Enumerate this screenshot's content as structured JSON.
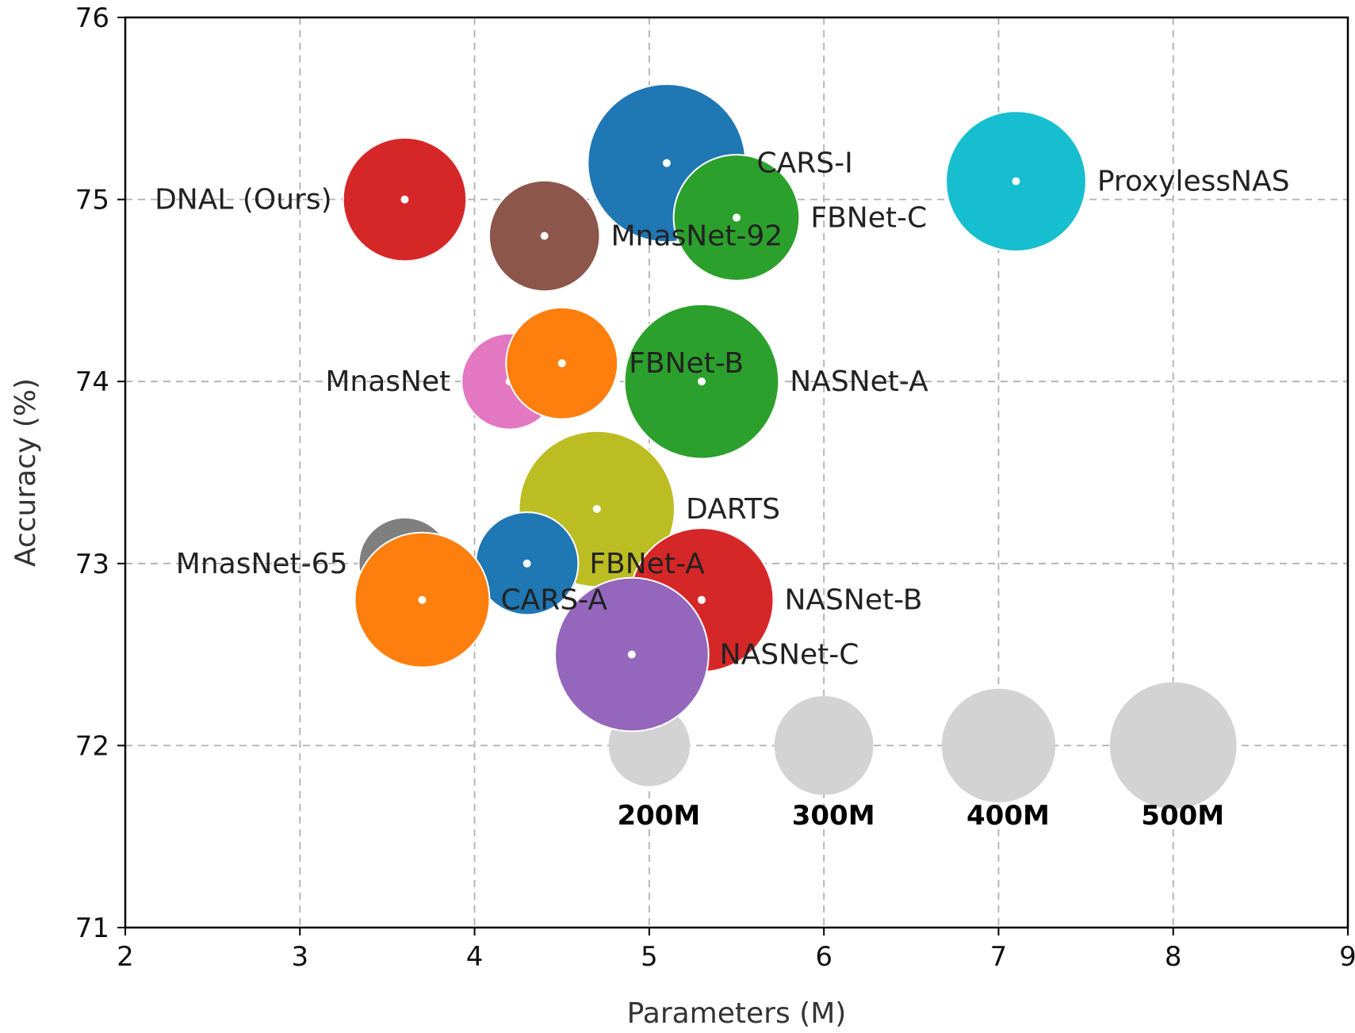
{
  "chart_data": {
    "type": "scatter",
    "title": "",
    "xlabel": "Parameters (M)",
    "ylabel": "Accuracy (%)",
    "xlim": [
      2,
      9
    ],
    "ylim": [
      71,
      76
    ],
    "xticks": [
      2,
      3,
      4,
      5,
      6,
      7,
      8,
      9
    ],
    "yticks": [
      71,
      72,
      73,
      74,
      75,
      76
    ],
    "grid": true,
    "size_encoding": "FLOPs",
    "points": [
      {
        "label": "DNAL (Ours)",
        "x": 3.6,
        "y": 75.0,
        "flops": 360,
        "color": "#d62728",
        "label_side": "left"
      },
      {
        "label": "MnasNet-92",
        "x": 4.4,
        "y": 74.8,
        "flops": 290,
        "color": "#8c564b",
        "label_side": "right"
      },
      {
        "label": "CARS-I",
        "x": 5.1,
        "y": 75.2,
        "flops": 590,
        "color": "#1f77b4",
        "label_side": "right"
      },
      {
        "label": "FBNet-C",
        "x": 5.5,
        "y": 74.9,
        "flops": 375,
        "color": "#2ca02c",
        "label_side": "right"
      },
      {
        "label": "ProxylessNAS",
        "x": 7.1,
        "y": 75.1,
        "flops": 465,
        "color": "#17becf",
        "label_side": "right"
      },
      {
        "label": "MnasNet",
        "x": 4.2,
        "y": 74.0,
        "flops": 217,
        "color": "#e377c2",
        "label_side": "left"
      },
      {
        "label": "FBNet-B",
        "x": 4.5,
        "y": 74.1,
        "flops": 295,
        "color": "#ff7f0e",
        "label_side": "right"
      },
      {
        "label": "NASNet-A",
        "x": 5.3,
        "y": 74.0,
        "flops": 564,
        "color": "#2ca02c",
        "label_side": "right"
      },
      {
        "label": "DARTS",
        "x": 4.7,
        "y": 73.3,
        "flops": 574,
        "color": "#bcbd22",
        "label_side": "right"
      },
      {
        "label": "MnasNet-65",
        "x": 3.6,
        "y": 73.0,
        "flops": 200,
        "color": "#7f7f7f",
        "label_side": "left"
      },
      {
        "label": "FBNet-A",
        "x": 4.3,
        "y": 73.0,
        "flops": 249,
        "color": "#1f77b4",
        "label_side": "right"
      },
      {
        "label": "CARS-A",
        "x": 3.7,
        "y": 72.8,
        "flops": 430,
        "color": "#ff7f0e",
        "label_side": "right"
      },
      {
        "label": "NASNet-B",
        "x": 5.3,
        "y": 72.8,
        "flops": 488,
        "color": "#d62728",
        "label_side": "right"
      },
      {
        "label": "NASNet-C",
        "x": 4.9,
        "y": 72.5,
        "flops": 558,
        "color": "#9467bd",
        "label_side": "right"
      }
    ],
    "size_reference": [
      {
        "label": "200M",
        "x": 5,
        "y": 72,
        "flops": 200,
        "color": "#d3d3d3"
      },
      {
        "label": "300M",
        "x": 6,
        "y": 72,
        "flops": 300,
        "color": "#d3d3d3"
      },
      {
        "label": "400M",
        "x": 7,
        "y": 72,
        "flops": 400,
        "color": "#d3d3d3"
      },
      {
        "label": "500M",
        "x": 8,
        "y": 72,
        "flops": 500,
        "color": "#d3d3d3"
      }
    ]
  }
}
